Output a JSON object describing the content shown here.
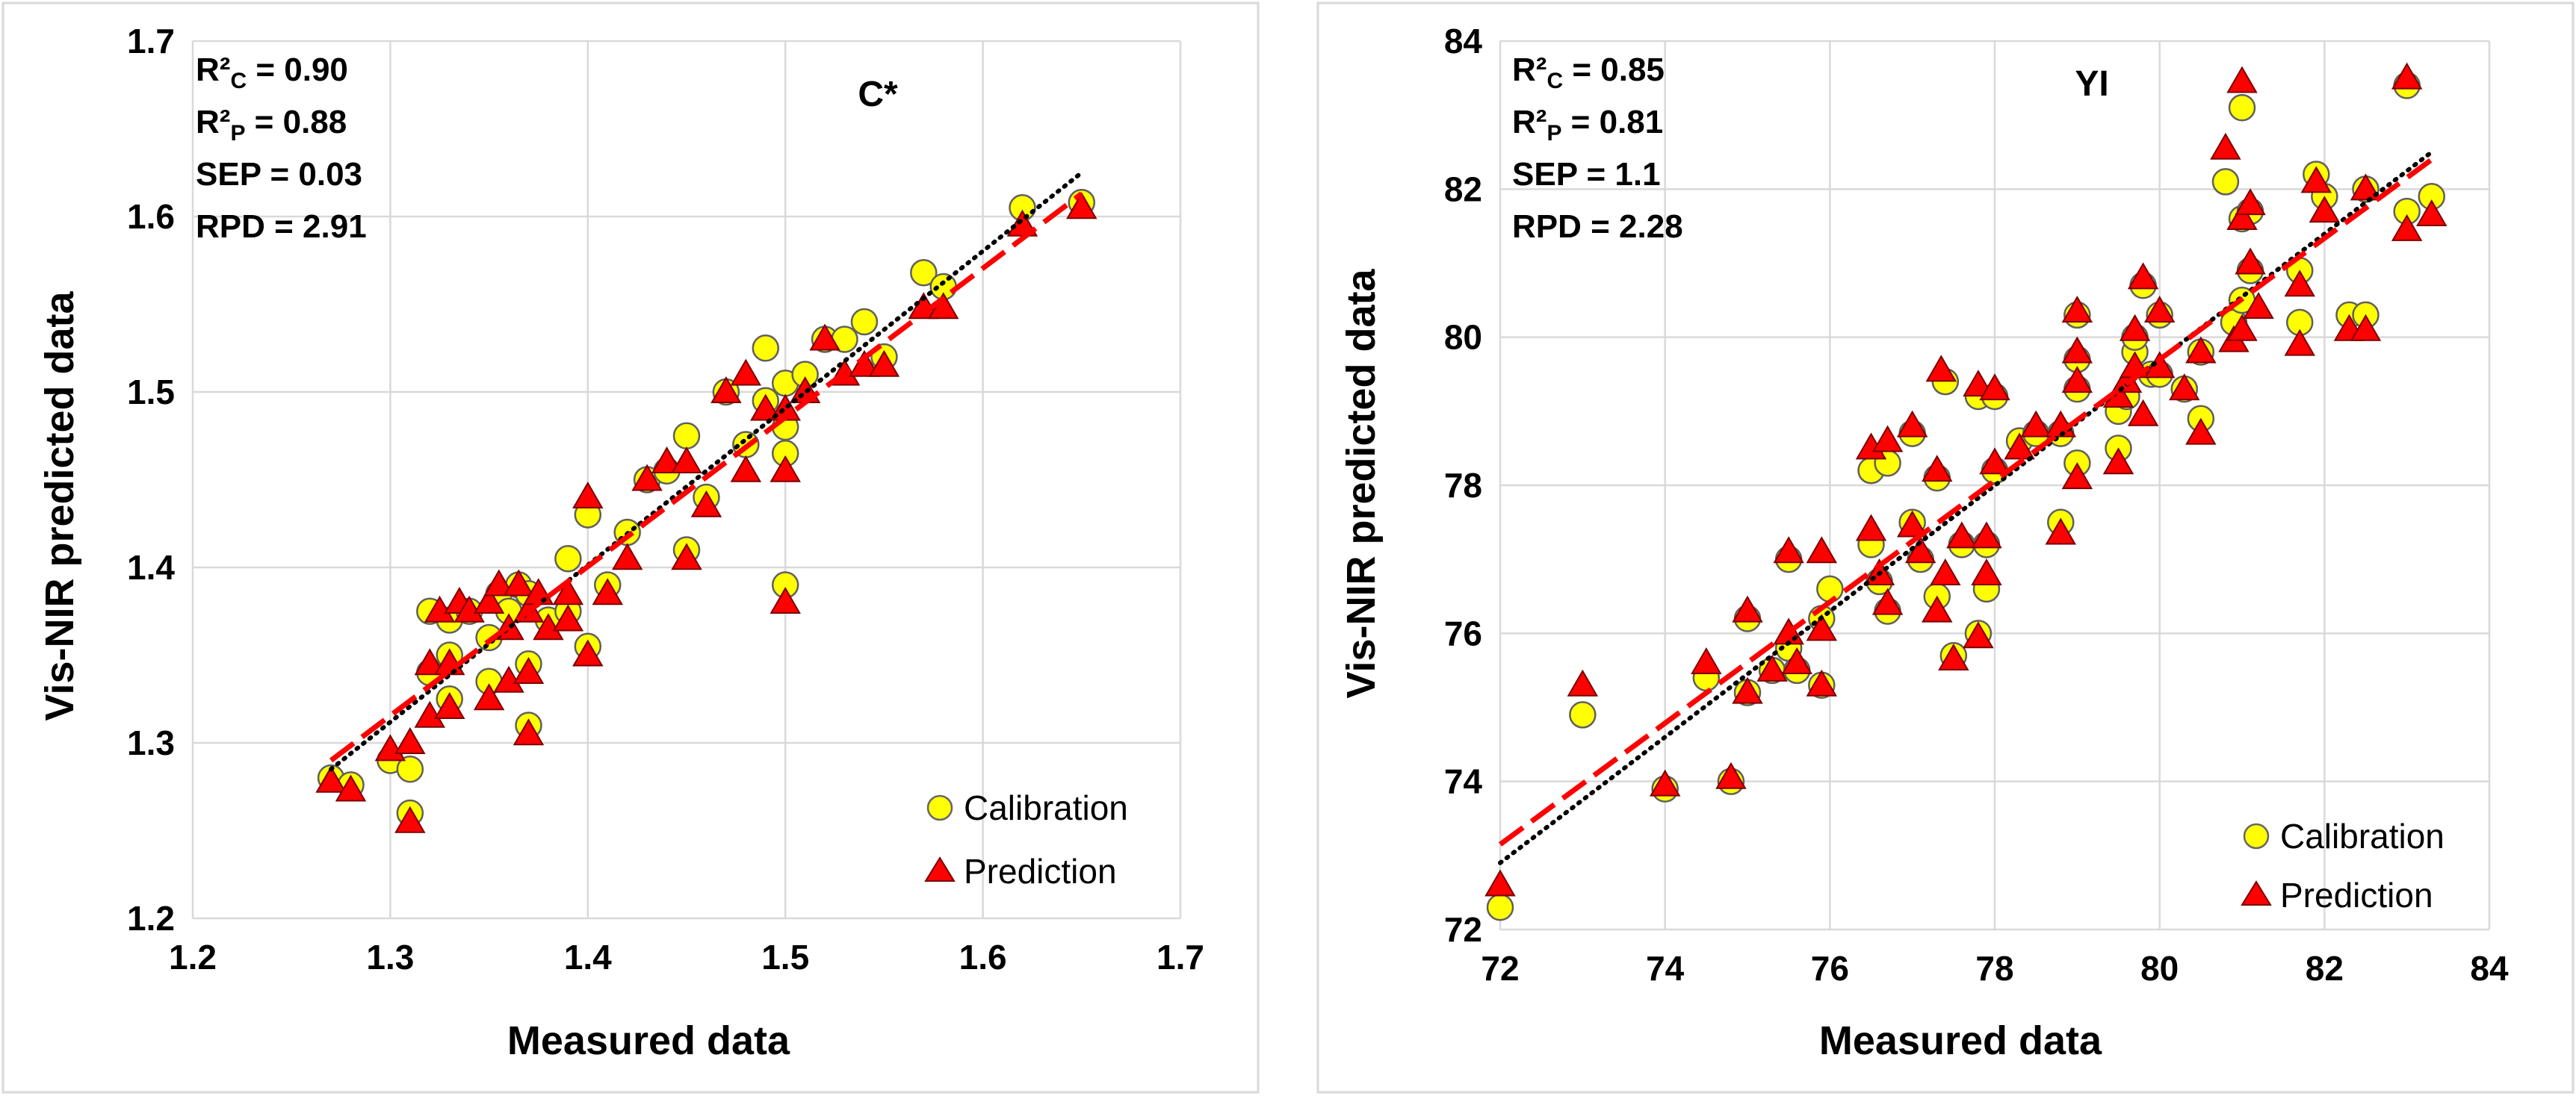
{
  "chart_data": [
    {
      "type": "scatter",
      "title": "C*",
      "xlabel": "Measured data",
      "ylabel": "Vis-NIR predicted data",
      "xlim": [
        1.2,
        1.7
      ],
      "ylim": [
        1.2,
        1.7
      ],
      "xticks": [
        "1.2",
        "1.3",
        "1.4",
        "1.5",
        "1.6",
        "1.7"
      ],
      "yticks": [
        "1.2",
        "1.3",
        "1.4",
        "1.5",
        "1.6",
        "1.7"
      ],
      "stats": [
        {
          "label": "R²",
          "sub": "C",
          "value": " = 0.90"
        },
        {
          "label": "R²",
          "sub": "P",
          "value": " = 0.88"
        },
        {
          "label": "SEP",
          "sub": "",
          "value": " = 0.03"
        },
        {
          "label": "RPD",
          "sub": "",
          "value": " = 2.91"
        }
      ],
      "legend": [
        "Calibration",
        "Prediction"
      ],
      "colors": {
        "calibration": "#ffff00",
        "prediction": "#ff0000",
        "trend_calibration": "#000000",
        "trend_prediction": "#ff0000"
      },
      "trend_calibration": [
        [
          1.27,
          1.285
        ],
        [
          1.65,
          1.625
        ]
      ],
      "trend_prediction": [
        [
          1.27,
          1.29
        ],
        [
          1.65,
          1.613
        ]
      ],
      "series": [
        {
          "name": "Calibration",
          "points": [
            [
              1.27,
              1.28
            ],
            [
              1.28,
              1.276
            ],
            [
              1.3,
              1.29
            ],
            [
              1.31,
              1.26
            ],
            [
              1.31,
              1.285
            ],
            [
              1.32,
              1.34
            ],
            [
              1.32,
              1.375
            ],
            [
              1.33,
              1.325
            ],
            [
              1.33,
              1.35
            ],
            [
              1.33,
              1.37
            ],
            [
              1.34,
              1.375
            ],
            [
              1.35,
              1.335
            ],
            [
              1.35,
              1.36
            ],
            [
              1.355,
              1.385
            ],
            [
              1.36,
              1.375
            ],
            [
              1.365,
              1.39
            ],
            [
              1.37,
              1.31
            ],
            [
              1.37,
              1.345
            ],
            [
              1.37,
              1.385
            ],
            [
              1.38,
              1.37
            ],
            [
              1.39,
              1.375
            ],
            [
              1.39,
              1.405
            ],
            [
              1.4,
              1.355
            ],
            [
              1.4,
              1.43
            ],
            [
              1.41,
              1.39
            ],
            [
              1.42,
              1.42
            ],
            [
              1.43,
              1.45
            ],
            [
              1.44,
              1.455
            ],
            [
              1.45,
              1.41
            ],
            [
              1.45,
              1.475
            ],
            [
              1.46,
              1.44
            ],
            [
              1.47,
              1.5
            ],
            [
              1.48,
              1.47
            ],
            [
              1.49,
              1.495
            ],
            [
              1.49,
              1.525
            ],
            [
              1.5,
              1.39
            ],
            [
              1.5,
              1.465
            ],
            [
              1.5,
              1.48
            ],
            [
              1.5,
              1.505
            ],
            [
              1.51,
              1.51
            ],
            [
              1.52,
              1.53
            ],
            [
              1.53,
              1.53
            ],
            [
              1.54,
              1.54
            ],
            [
              1.55,
              1.52
            ],
            [
              1.57,
              1.568
            ],
            [
              1.58,
              1.56
            ],
            [
              1.62,
              1.605
            ],
            [
              1.65,
              1.608
            ]
          ]
        },
        {
          "name": "Prediction",
          "points": [
            [
              1.27,
              1.278
            ],
            [
              1.28,
              1.273
            ],
            [
              1.3,
              1.296
            ],
            [
              1.31,
              1.255
            ],
            [
              1.31,
              1.3
            ],
            [
              1.32,
              1.315
            ],
            [
              1.32,
              1.345
            ],
            [
              1.325,
              1.375
            ],
            [
              1.33,
              1.32
            ],
            [
              1.33,
              1.345
            ],
            [
              1.335,
              1.38
            ],
            [
              1.34,
              1.375
            ],
            [
              1.35,
              1.325
            ],
            [
              1.35,
              1.38
            ],
            [
              1.355,
              1.39
            ],
            [
              1.36,
              1.335
            ],
            [
              1.36,
              1.365
            ],
            [
              1.365,
              1.39
            ],
            [
              1.37,
              1.305
            ],
            [
              1.37,
              1.34
            ],
            [
              1.37,
              1.375
            ],
            [
              1.375,
              1.385
            ],
            [
              1.38,
              1.365
            ],
            [
              1.39,
              1.37
            ],
            [
              1.39,
              1.385
            ],
            [
              1.4,
              1.35
            ],
            [
              1.4,
              1.44
            ],
            [
              1.41,
              1.385
            ],
            [
              1.42,
              1.405
            ],
            [
              1.43,
              1.45
            ],
            [
              1.44,
              1.46
            ],
            [
              1.45,
              1.405
            ],
            [
              1.45,
              1.46
            ],
            [
              1.46,
              1.435
            ],
            [
              1.47,
              1.5
            ],
            [
              1.48,
              1.455
            ],
            [
              1.48,
              1.51
            ],
            [
              1.49,
              1.49
            ],
            [
              1.5,
              1.38
            ],
            [
              1.5,
              1.455
            ],
            [
              1.5,
              1.49
            ],
            [
              1.51,
              1.5
            ],
            [
              1.52,
              1.53
            ],
            [
              1.53,
              1.51
            ],
            [
              1.54,
              1.515
            ],
            [
              1.55,
              1.515
            ],
            [
              1.57,
              1.548
            ],
            [
              1.58,
              1.548
            ],
            [
              1.62,
              1.595
            ],
            [
              1.65,
              1.605
            ]
          ]
        }
      ]
    },
    {
      "type": "scatter",
      "title": "YI",
      "xlabel": "Measured data",
      "ylabel": "Vis-NIR predicted data",
      "xlim": [
        72,
        84
      ],
      "ylim": [
        72,
        84
      ],
      "xticks": [
        "72",
        "74",
        "76",
        "78",
        "80",
        "82",
        "84"
      ],
      "yticks": [
        "72",
        "74",
        "76",
        "78",
        "80",
        "82",
        "84"
      ],
      "stats": [
        {
          "label": "R²",
          "sub": "C",
          "value": " = 0.85"
        },
        {
          "label": "R²",
          "sub": "P",
          "value": " = 0.81"
        },
        {
          "label": "SEP",
          "sub": "",
          "value": " = 1.1"
        },
        {
          "label": "RPD",
          "sub": "",
          "value": " = 2.28"
        }
      ],
      "legend": [
        "Calibration",
        "Prediction"
      ],
      "colors": {
        "calibration": "#ffff00",
        "prediction": "#ff0000",
        "trend_calibration": "#000000",
        "trend_prediction": "#ff0000"
      },
      "trend_calibration": [
        [
          72,
          72.9
        ],
        [
          83.3,
          82.5
        ]
      ],
      "trend_prediction": [
        [
          72,
          73.15
        ],
        [
          83.3,
          82.4
        ]
      ],
      "series": [
        {
          "name": "Calibration",
          "points": [
            [
              72,
              72.3
            ],
            [
              73,
              74.9
            ],
            [
              74,
              73.9
            ],
            [
              74.5,
              75.4
            ],
            [
              74.8,
              74
            ],
            [
              75,
              75.2
            ],
            [
              75,
              76.2
            ],
            [
              75.3,
              75.5
            ],
            [
              75.5,
              77
            ],
            [
              75.5,
              75.8
            ],
            [
              75.6,
              75.5
            ],
            [
              75.9,
              75.3
            ],
            [
              75.9,
              76.2
            ],
            [
              76.0,
              76.6
            ],
            [
              76.5,
              77.2
            ],
            [
              76.5,
              78.2
            ],
            [
              76.6,
              76.7
            ],
            [
              76.7,
              78.3
            ],
            [
              76.7,
              76.3
            ],
            [
              77.0,
              78.7
            ],
            [
              77.0,
              77.5
            ],
            [
              77.1,
              77.0
            ],
            [
              77.3,
              78.1
            ],
            [
              77.3,
              76.5
            ],
            [
              77.4,
              79.4
            ],
            [
              77.5,
              75.7
            ],
            [
              77.6,
              77.2
            ],
            [
              77.8,
              79.2
            ],
            [
              77.8,
              76.0
            ],
            [
              77.9,
              77.2
            ],
            [
              77.9,
              76.6
            ],
            [
              78.0,
              79.2
            ],
            [
              78.0,
              78.2
            ],
            [
              78.3,
              78.6
            ],
            [
              78.5,
              78.7
            ],
            [
              78.8,
              78.7
            ],
            [
              78.8,
              77.5
            ],
            [
              79.0,
              79.7
            ],
            [
              79.0,
              80.3
            ],
            [
              79.0,
              79.3
            ],
            [
              79.0,
              78.3
            ],
            [
              79.5,
              79.0
            ],
            [
              79.5,
              78.5
            ],
            [
              79.6,
              79.2
            ],
            [
              79.7,
              79.8
            ],
            [
              79.7,
              80.0
            ],
            [
              79.8,
              80.7
            ],
            [
              79.9,
              79.5
            ],
            [
              80.0,
              80.3
            ],
            [
              80.0,
              79.5
            ],
            [
              80.3,
              79.3
            ],
            [
              80.5,
              78.9
            ],
            [
              80.5,
              79.8
            ],
            [
              80.8,
              82.1
            ],
            [
              80.9,
              80.2
            ],
            [
              81.0,
              83.1
            ],
            [
              81.0,
              81.6
            ],
            [
              81.0,
              80.5
            ],
            [
              81.1,
              81.7
            ],
            [
              81.1,
              80.9
            ],
            [
              81.7,
              80.9
            ],
            [
              81.7,
              80.2
            ],
            [
              81.9,
              82.2
            ],
            [
              82.0,
              81.9
            ],
            [
              82.3,
              80.3
            ],
            [
              82.5,
              82.0
            ],
            [
              82.5,
              80.3
            ],
            [
              83.0,
              83.4
            ],
            [
              83.0,
              81.7
            ],
            [
              83.3,
              81.9
            ]
          ]
        },
        {
          "name": "Prediction",
          "points": [
            [
              72,
              72.6
            ],
            [
              73,
              75.3
            ],
            [
              74,
              73.95
            ],
            [
              74.5,
              75.6
            ],
            [
              74.8,
              74.05
            ],
            [
              75,
              75.2
            ],
            [
              75,
              76.3
            ],
            [
              75.3,
              75.5
            ],
            [
              75.5,
              77.1
            ],
            [
              75.5,
              76
            ],
            [
              75.6,
              75.6
            ],
            [
              75.9,
              75.3
            ],
            [
              75.9,
              76.05
            ],
            [
              75.9,
              77.1
            ],
            [
              76.5,
              77.4
            ],
            [
              76.5,
              78.5
            ],
            [
              76.6,
              76.8
            ],
            [
              76.7,
              78.6
            ],
            [
              76.7,
              76.4
            ],
            [
              77.0,
              78.8
            ],
            [
              77.0,
              77.45
            ],
            [
              77.1,
              77.1
            ],
            [
              77.3,
              78.2
            ],
            [
              77.3,
              76.3
            ],
            [
              77.35,
              79.55
            ],
            [
              77.4,
              76.8
            ],
            [
              77.5,
              75.65
            ],
            [
              77.6,
              77.3
            ],
            [
              77.8,
              79.35
            ],
            [
              77.8,
              75.95
            ],
            [
              77.9,
              77.3
            ],
            [
              77.9,
              76.8
            ],
            [
              78.0,
              79.3
            ],
            [
              78.0,
              78.3
            ],
            [
              78.3,
              78.5
            ],
            [
              78.5,
              78.8
            ],
            [
              78.8,
              78.8
            ],
            [
              78.8,
              77.35
            ],
            [
              79.0,
              79.8
            ],
            [
              79.0,
              80.35
            ],
            [
              79.0,
              79.4
            ],
            [
              79.0,
              78.1
            ],
            [
              79.5,
              78.3
            ],
            [
              79.5,
              79.2
            ],
            [
              79.6,
              79.4
            ],
            [
              79.7,
              79.6
            ],
            [
              79.7,
              80.1
            ],
            [
              79.8,
              80.8
            ],
            [
              79.8,
              78.95
            ],
            [
              80.0,
              80.35
            ],
            [
              80.0,
              79.6
            ],
            [
              80.3,
              79.3
            ],
            [
              80.5,
              78.7
            ],
            [
              80.5,
              79.8
            ],
            [
              80.8,
              82.55
            ],
            [
              80.9,
              79.95
            ],
            [
              81.0,
              83.45
            ],
            [
              81.0,
              81.6
            ],
            [
              81.0,
              80.1
            ],
            [
              81.1,
              81.8
            ],
            [
              81.1,
              81.0
            ],
            [
              81.2,
              80.4
            ],
            [
              81.7,
              80.7
            ],
            [
              81.7,
              79.9
            ],
            [
              81.9,
              82.1
            ],
            [
              82.0,
              81.7
            ],
            [
              82.3,
              80.1
            ],
            [
              82.5,
              82.0
            ],
            [
              82.5,
              80.1
            ],
            [
              83.0,
              83.5
            ],
            [
              83.0,
              81.45
            ],
            [
              83.3,
              81.65
            ]
          ]
        }
      ]
    }
  ]
}
